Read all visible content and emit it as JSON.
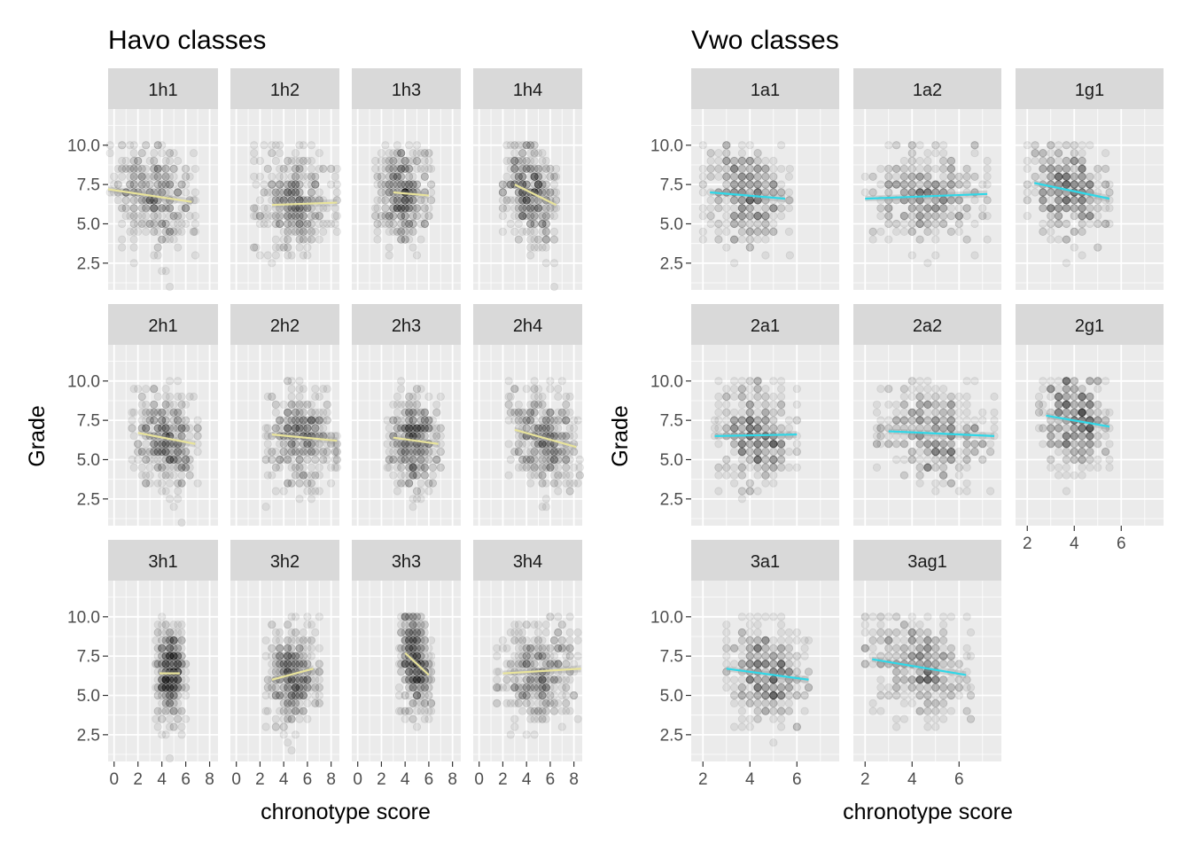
{
  "colors": {
    "panel_bg": "#ebebeb",
    "strip_bg": "#d9d9d9",
    "grid_major": "#ffffff",
    "point": "#000000",
    "havo_line": "#e8e39b",
    "vwo_line": "#2fd8e8"
  },
  "chart_data": [
    {
      "type": "scatter",
      "title": "Havo classes",
      "xlabel": "chronotype score",
      "ylabel": "Grade",
      "xlim": [
        -0.5,
        8.7
      ],
      "ylim": [
        0.8,
        12.3
      ],
      "xticks": [
        0,
        2,
        4,
        6,
        8
      ],
      "yticks": [
        2.5,
        5.0,
        7.5,
        10.0
      ],
      "ytick_labels": [
        "2.5",
        "5.0",
        "7.5",
        "10.0"
      ],
      "grid": true,
      "series": [
        {
          "panel": "1h1",
          "x_range": [
            -0.5,
            6.8
          ],
          "fit": [
            [
              -0.5,
              7.2
            ],
            [
              6.5,
              6.4
            ]
          ]
        },
        {
          "panel": "1h2",
          "x_range": [
            1.5,
            8.5
          ],
          "fit": [
            [
              3.0,
              6.2
            ],
            [
              8.5,
              6.35
            ]
          ]
        },
        {
          "panel": "1h3",
          "x_range": [
            1.5,
            6.2
          ],
          "fit": [
            [
              3.0,
              7.0
            ],
            [
              6.0,
              6.8
            ]
          ]
        },
        {
          "panel": "1h4",
          "x_range": [
            2.0,
            6.5
          ],
          "fit": [
            [
              3.0,
              7.5
            ],
            [
              6.5,
              6.2
            ]
          ]
        },
        {
          "panel": "2h1",
          "x_range": [
            1.5,
            7.0
          ],
          "fit": [
            [
              2.0,
              6.7
            ],
            [
              6.8,
              6.0
            ]
          ]
        },
        {
          "panel": "2h2",
          "x_range": [
            2.5,
            8.5
          ],
          "fit": [
            [
              3.0,
              6.6
            ],
            [
              8.5,
              6.2
            ]
          ]
        },
        {
          "panel": "2h3",
          "x_range": [
            2.5,
            7.0
          ],
          "fit": [
            [
              3.0,
              6.4
            ],
            [
              6.8,
              6.0
            ]
          ]
        },
        {
          "panel": "2h4",
          "x_range": [
            2.5,
            8.5
          ],
          "fit": [
            [
              3.0,
              6.9
            ],
            [
              8.2,
              5.8
            ]
          ]
        },
        {
          "panel": "3h1",
          "x_range": [
            3.5,
            6.0
          ],
          "fit": [
            [
              3.8,
              6.4
            ],
            [
              5.5,
              6.4
            ]
          ]
        },
        {
          "panel": "3h2",
          "x_range": [
            2.5,
            7.0
          ],
          "fit": [
            [
              3.0,
              6.0
            ],
            [
              6.5,
              6.7
            ]
          ]
        },
        {
          "panel": "3h3",
          "x_range": [
            3.5,
            6.2
          ],
          "fit": [
            [
              4.0,
              7.7
            ],
            [
              6.0,
              6.3
            ]
          ]
        },
        {
          "panel": "3h4",
          "x_range": [
            1.5,
            8.6
          ],
          "fit": [
            [
              2.0,
              6.4
            ],
            [
              8.6,
              6.7
            ]
          ]
        }
      ]
    },
    {
      "type": "scatter",
      "title": "Vwo classes",
      "xlabel": "chronotype score",
      "ylabel": "Grade",
      "xlim": [
        1.5,
        7.8
      ],
      "ylim": [
        0.8,
        12.3
      ],
      "xticks": [
        2,
        4,
        6
      ],
      "yticks": [
        2.5,
        5.0,
        7.5,
        10.0
      ],
      "ytick_labels": [
        "2.5",
        "5.0",
        "7.5",
        "10.0"
      ],
      "grid": true,
      "series": [
        {
          "panel": "1a1",
          "x_range": [
            2.0,
            5.7
          ],
          "fit": [
            [
              2.3,
              7.0
            ],
            [
              5.5,
              6.6
            ]
          ]
        },
        {
          "panel": "1a2",
          "x_range": [
            2.0,
            7.2
          ],
          "fit": [
            [
              2.0,
              6.6
            ],
            [
              7.2,
              6.9
            ]
          ]
        },
        {
          "panel": "1g1",
          "x_range": [
            2.0,
            5.5
          ],
          "fit": [
            [
              2.3,
              7.6
            ],
            [
              5.5,
              6.6
            ]
          ]
        },
        {
          "panel": "2a1",
          "x_range": [
            2.5,
            6.0
          ],
          "fit": [
            [
              2.5,
              6.5
            ],
            [
              6.0,
              6.6
            ]
          ]
        },
        {
          "panel": "2a2",
          "x_range": [
            2.5,
            7.5
          ],
          "fit": [
            [
              3.0,
              6.8
            ],
            [
              7.5,
              6.5
            ]
          ]
        },
        {
          "panel": "2g1",
          "x_range": [
            2.5,
            5.5
          ],
          "fit": [
            [
              2.8,
              7.8
            ],
            [
              5.5,
              7.1
            ]
          ]
        },
        {
          "panel": "3a1",
          "x_range": [
            3.0,
            6.5
          ],
          "fit": [
            [
              3.0,
              6.7
            ],
            [
              6.5,
              6.0
            ]
          ]
        },
        {
          "panel": "3ag1",
          "x_range": [
            2.0,
            6.5
          ],
          "fit": [
            [
              2.3,
              7.3
            ],
            [
              6.3,
              6.3
            ]
          ]
        }
      ]
    }
  ]
}
